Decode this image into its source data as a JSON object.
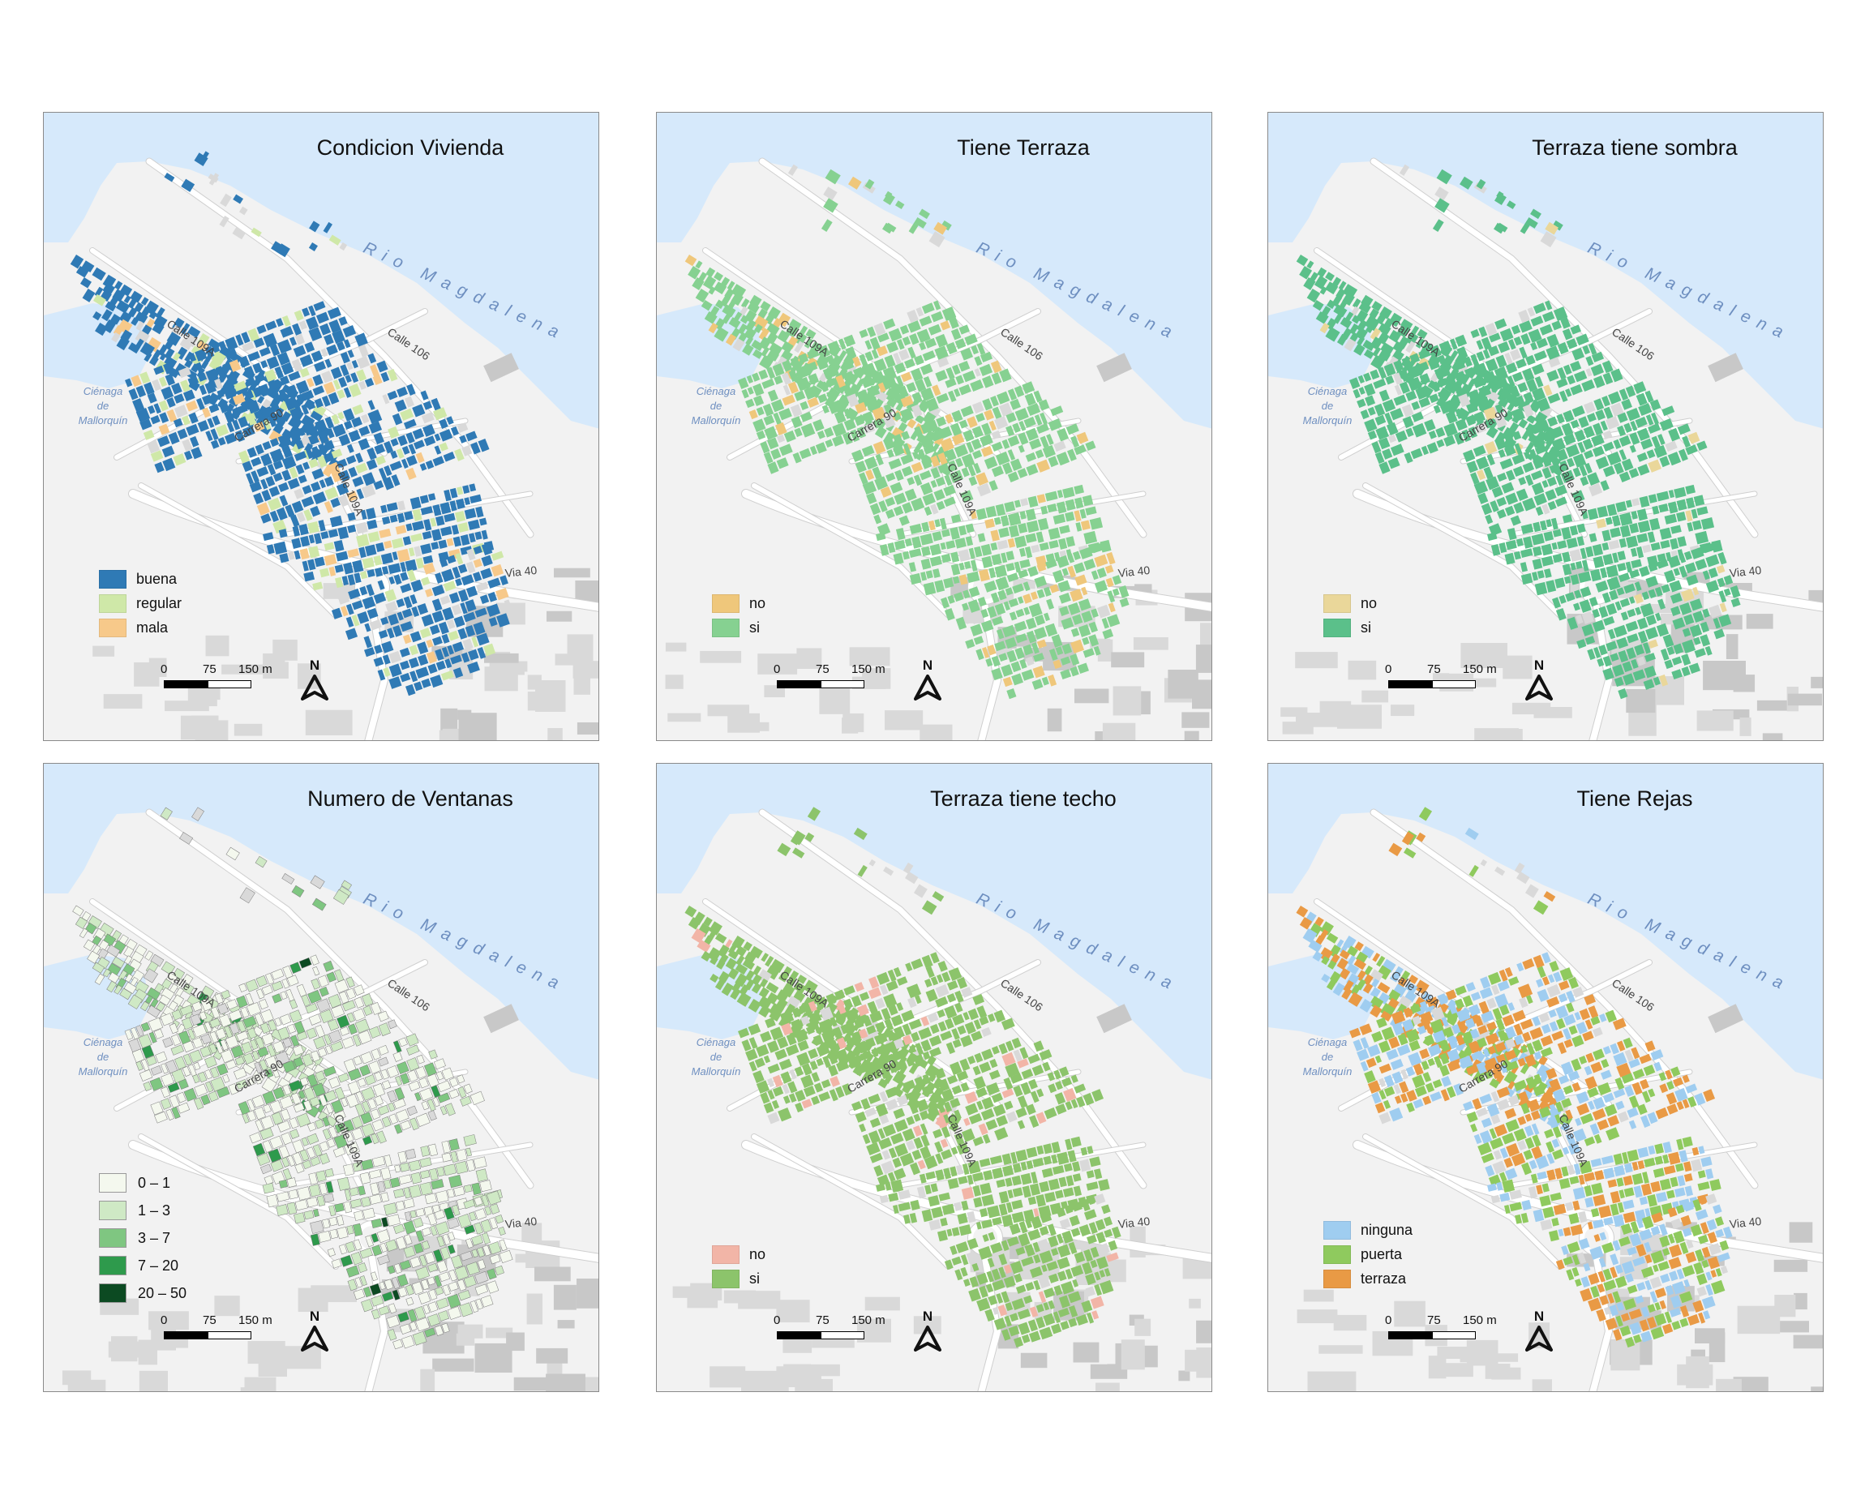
{
  "panels": [
    {
      "id": "p1",
      "title": "Condicion Vivienda",
      "legend": [
        {
          "label": "buena",
          "color": "#2f7ab5"
        },
        {
          "label": "regular",
          "color": "#cfe8a8"
        },
        {
          "label": "mala",
          "color": "#f7c98a"
        }
      ],
      "weights": [
        0.8,
        0.13,
        0.07
      ]
    },
    {
      "id": "p2",
      "title": "Tiene Terraza",
      "legend": [
        {
          "label": "no",
          "color": "#efc77b"
        },
        {
          "label": "si",
          "color": "#86d191"
        }
      ],
      "weights": [
        0.13,
        0.87
      ]
    },
    {
      "id": "p3",
      "title": "Terraza tiene sombra",
      "legend": [
        {
          "label": "no",
          "color": "#ead79a"
        },
        {
          "label": "si",
          "color": "#5bc08a"
        }
      ],
      "weights": [
        0.03,
        0.97
      ]
    },
    {
      "id": "p4",
      "title": "Numero de Ventanas",
      "legend": [
        {
          "label": "0 – 1",
          "color": "#f4f8ee"
        },
        {
          "label": "1 – 3",
          "color": "#cfe9c5"
        },
        {
          "label": "3 – 7",
          "color": "#7fc681"
        },
        {
          "label": "7 – 20",
          "color": "#2e9a4c"
        },
        {
          "label": "20 – 50",
          "color": "#0c4a22"
        }
      ],
      "weights": [
        0.48,
        0.35,
        0.12,
        0.04,
        0.01
      ]
    },
    {
      "id": "p5",
      "title": "Terraza tiene techo",
      "legend": [
        {
          "label": "no",
          "color": "#f2b5a7"
        },
        {
          "label": "si",
          "color": "#8cc46b"
        }
      ],
      "weights": [
        0.05,
        0.95
      ]
    },
    {
      "id": "p6",
      "title": "Tiene Rejas",
      "legend": [
        {
          "label": "ninguna",
          "color": "#9fcdf0"
        },
        {
          "label": "puerta",
          "color": "#8fca5e"
        },
        {
          "label": "terraza",
          "color": "#e99a45"
        }
      ],
      "weights": [
        0.33,
        0.37,
        0.3
      ]
    }
  ],
  "labels": {
    "river": "Rio Magdalena",
    "cienaga": [
      "Ciénaga",
      "de",
      "Mallorquín"
    ],
    "streets": {
      "c109a_top": "Calle 109A",
      "c106": "Calle 106",
      "carrera90": "Carrera 90",
      "c109a_mid": "Calle 109A",
      "via40": "Via 40"
    }
  },
  "scale": {
    "ticks": [
      "0",
      "75",
      "150 m"
    ]
  },
  "north": "N",
  "colors": {
    "water": "#d6e9fb",
    "land": "#f2f2f2",
    "road": "#ffffff",
    "road_edge": "#cfcfcf",
    "urban_grey": "#c8c8c8",
    "building_grey": "#d9d9d9"
  }
}
